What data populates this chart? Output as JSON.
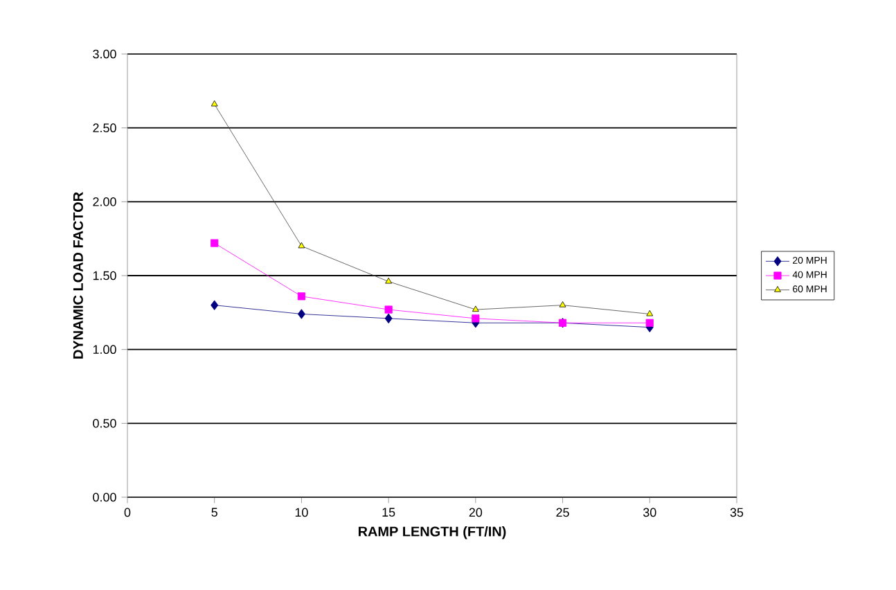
{
  "chart_data": {
    "type": "line",
    "xlabel": "RAMP LENGTH (FT/IN)",
    "ylabel": "DYNAMIC LOAD FACTOR",
    "x": [
      5,
      10,
      15,
      20,
      25,
      30
    ],
    "series": [
      {
        "name": "20 MPH",
        "color": "#000080",
        "marker": "diamond",
        "values": [
          1.3,
          1.24,
          1.21,
          1.18,
          1.18,
          1.15
        ]
      },
      {
        "name": "40 MPH",
        "color": "#ff00ff",
        "marker": "square",
        "values": [
          1.72,
          1.36,
          1.27,
          1.21,
          1.18,
          1.18
        ]
      },
      {
        "name": "60 MPH",
        "color": "#ffff00",
        "marker": "triangle",
        "values": [
          2.66,
          1.7,
          1.46,
          1.27,
          1.3,
          1.24
        ]
      }
    ],
    "xlim": [
      0,
      35
    ],
    "xticks": [
      0,
      5,
      10,
      15,
      20,
      25,
      30,
      35
    ],
    "ylim": [
      0,
      3
    ],
    "yticks": [
      {
        "value": 0,
        "label": "0.00"
      },
      {
        "value": 0.5,
        "label": "0.50"
      },
      {
        "value": 1,
        "label": "1.00"
      },
      {
        "value": 1.5,
        "label": "1.50"
      },
      {
        "value": 2,
        "label": "2.00"
      },
      {
        "value": 2.5,
        "label": "2.50"
      },
      {
        "value": 3,
        "label": "3.00"
      }
    ],
    "grid": "y",
    "legend": "right"
  }
}
